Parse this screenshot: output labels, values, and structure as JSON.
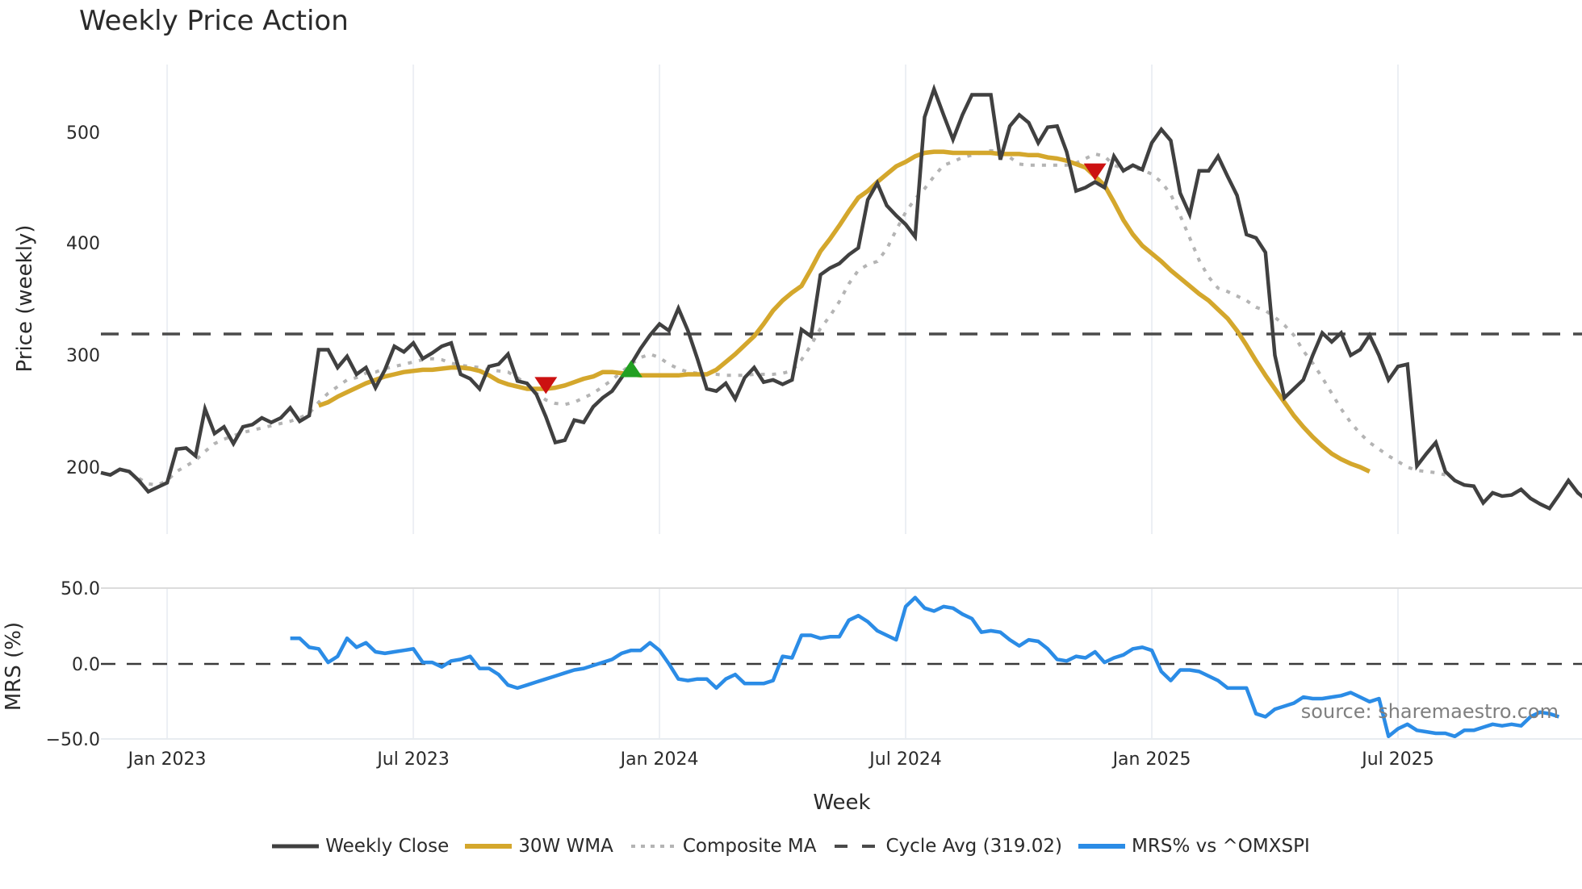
{
  "chart_data": {
    "type": "line",
    "title": "Weekly Price Action",
    "xlabel": "Week",
    "panels": [
      {
        "name": "price",
        "ylabel": "Price (weekly)",
        "yticks": [
          200,
          300,
          400,
          500
        ],
        "ylim": [
          145,
          560
        ]
      },
      {
        "name": "mrs",
        "ylabel": "MRS (%)",
        "yticks": [
          "50.0",
          "0.0",
          "−50.0"
        ],
        "ylim": [
          -50,
          50
        ]
      }
    ],
    "x_tick_labels": [
      "Jan 2023",
      "Jul 2023",
      "Jan 2024",
      "Jul 2024",
      "Jan 2025",
      "Jul 2025"
    ],
    "x_tick_week_index": [
      7,
      33,
      59,
      85,
      111,
      137
    ],
    "cycle_avg": 319.02,
    "series": [
      {
        "name": "Weekly Close",
        "color": "#404040",
        "style": "solid",
        "values": [
          195,
          193,
          198,
          196,
          188,
          178,
          182,
          186,
          216,
          217,
          210,
          252,
          230,
          236,
          221,
          236,
          238,
          244,
          240,
          244,
          253,
          241,
          246,
          305,
          305,
          289,
          299,
          283,
          289,
          271,
          287,
          308,
          303,
          311,
          297,
          302,
          308,
          311,
          283,
          279,
          270,
          290,
          292,
          301,
          277,
          275,
          265,
          245,
          222,
          224,
          242,
          240,
          254,
          262,
          268,
          280,
          292,
          306,
          318,
          328,
          322,
          342,
          322,
          297,
          270,
          268,
          275,
          261,
          280,
          289,
          276,
          278,
          274,
          278,
          323,
          317,
          372,
          378,
          382,
          390,
          396,
          439,
          454,
          434,
          425,
          417,
          406,
          513,
          538,
          515,
          493,
          515,
          533,
          533,
          533,
          475,
          505,
          515,
          508,
          490,
          504,
          505,
          482,
          447,
          450,
          455,
          450,
          478,
          465,
          470,
          466,
          490,
          502,
          492,
          445,
          426,
          465,
          465,
          478,
          460,
          443,
          408,
          405,
          392,
          300,
          262,
          270,
          278,
          300,
          320,
          312,
          320,
          300,
          305,
          318,
          300,
          278,
          290,
          292,
          201,
          212,
          222,
          196,
          188,
          184,
          183,
          168,
          177,
          174,
          175,
          180,
          172,
          167,
          163,
          175,
          188,
          177,
          170
        ]
      },
      {
        "name": "30W WMA",
        "color": "#d4a72c",
        "style": "solid",
        "start_index": 23,
        "values": [
          255,
          258,
          263,
          267,
          271,
          275,
          278,
          281,
          283,
          285,
          286,
          287,
          287,
          288,
          289,
          289,
          288,
          286,
          282,
          277,
          274,
          272,
          270,
          270,
          270,
          271,
          273,
          276,
          279,
          281,
          285,
          285,
          284,
          283,
          282,
          282,
          282,
          282,
          282,
          283,
          283,
          283,
          287,
          294,
          301,
          309,
          317,
          328,
          340,
          349,
          356,
          362,
          377,
          393,
          404,
          416,
          429,
          441,
          447,
          455,
          462,
          469,
          473,
          478,
          481,
          482,
          482,
          481,
          481,
          481,
          481,
          481,
          480,
          480,
          480,
          479,
          479,
          477,
          476,
          474,
          471,
          468,
          460,
          452,
          437,
          421,
          408,
          398,
          391,
          384,
          376,
          369,
          362,
          355,
          349,
          341,
          333,
          322,
          309,
          295,
          282,
          270,
          258,
          246,
          236,
          227,
          219,
          212,
          207,
          203,
          200,
          196
        ]
      },
      {
        "name": "Composite MA",
        "color": "#b4b4b4",
        "style": "dotted",
        "values": [
          null,
          null,
          null,
          195,
          190,
          185,
          184,
          188,
          196,
          201,
          206,
          214,
          221,
          225,
          228,
          231,
          233,
          235,
          237,
          239,
          241,
          244,
          248,
          258,
          266,
          272,
          278,
          280,
          284,
          285,
          288,
          290,
          292,
          294,
          296,
          297,
          296,
          293,
          291,
          290,
          289,
          287,
          286,
          285,
          280,
          274,
          266,
          260,
          257,
          256,
          258,
          262,
          266,
          272,
          278,
          285,
          292,
          298,
          301,
          298,
          292,
          288,
          285,
          284,
          283,
          283,
          282,
          282,
          282,
          283,
          283,
          283,
          284,
          286,
          296,
          309,
          324,
          335,
          348,
          364,
          376,
          381,
          384,
          395,
          412,
          428,
          440,
          449,
          460,
          470,
          473,
          477,
          479,
          481,
          483,
          482,
          477,
          471,
          470,
          470,
          470,
          470,
          470,
          472,
          476,
          480,
          478,
          470,
          467,
          467,
          466,
          462,
          455,
          444,
          425,
          405,
          385,
          370,
          360,
          357,
          353,
          349,
          343,
          340,
          334,
          327,
          318,
          304,
          293,
          280,
          266,
          252,
          240,
          230,
          222,
          216,
          210,
          205,
          200,
          197,
          196,
          195,
          193
        ]
      },
      {
        "name": "Cycle Avg (319.02)",
        "color": "#4a4a4a",
        "style": "dashed",
        "value": 319.02
      },
      {
        "name": "MRS% vs ^OMXSPI",
        "color": "#2b8ce6",
        "style": "solid",
        "panel": "mrs",
        "start_index": 20,
        "values": [
          17,
          17,
          11,
          10,
          1,
          5,
          17,
          11,
          14,
          8,
          7,
          8,
          9,
          10,
          1,
          1,
          -2,
          2,
          3,
          5,
          -3,
          -3,
          -7,
          -14,
          -16,
          -14,
          -12,
          -10,
          -8,
          -6,
          -4,
          -3,
          -1,
          1,
          3,
          7,
          9,
          9,
          14,
          9,
          0,
          -10,
          -11,
          -10,
          -10,
          -16,
          -10,
          -7,
          -13,
          -13,
          -13,
          -11,
          5,
          4,
          19,
          19,
          17,
          18,
          18,
          29,
          32,
          28,
          22,
          19,
          16,
          38,
          44,
          37,
          35,
          38,
          37,
          33,
          30,
          21,
          22,
          21,
          16,
          12,
          16,
          15,
          10,
          3,
          2,
          5,
          4,
          8,
          1,
          4,
          6,
          10,
          11,
          9,
          -5,
          -11,
          -4,
          -4,
          -5,
          -8,
          -11,
          -16,
          -16,
          -16,
          -33,
          -35,
          -30,
          -28,
          -26,
          -22,
          -23,
          -23,
          -22,
          -21,
          -19,
          -22,
          -25,
          -23,
          -48,
          -43,
          -40,
          -44,
          -45,
          -46,
          -46,
          -48,
          -44,
          -44,
          -42,
          -40,
          -41,
          -40,
          -41,
          -35,
          -32,
          -33,
          -35
        ]
      }
    ],
    "markers": [
      {
        "type": "sell",
        "shape": "triangle-down",
        "color": "#cc1111",
        "week_index": 47,
        "value": 275
      },
      {
        "type": "buy",
        "shape": "triangle-up",
        "color": "#22a022",
        "week_index": 56,
        "value": 286
      },
      {
        "type": "sell",
        "shape": "triangle-down",
        "color": "#cc1111",
        "week_index": 105,
        "value": 466
      }
    ],
    "legend": [
      {
        "label": "Weekly Close",
        "color": "#404040",
        "style": "solid"
      },
      {
        "label": "30W WMA",
        "color": "#d4a72c",
        "style": "solid"
      },
      {
        "label": "Composite MA",
        "color": "#b4b4b4",
        "style": "dotted"
      },
      {
        "label": "Cycle Avg (319.02)",
        "color": "#4a4a4a",
        "style": "dashed"
      },
      {
        "label": "MRS% vs ^OMXSPI",
        "color": "#2b8ce6",
        "style": "solid"
      }
    ],
    "legend_position": "bottom",
    "grid": true,
    "annotation": "source: sharemaestro.com"
  },
  "labels": {
    "title": "Weekly Price Action",
    "price_ylabel": "Price (weekly)",
    "mrs_ylabel": "MRS (%)",
    "xlabel": "Week",
    "watermark": "source: sharemaestro.com",
    "price_ticks": [
      "200",
      "300",
      "400",
      "500"
    ],
    "mrs_ticks": [
      "50.0",
      "0.0",
      "−50.0"
    ],
    "x_ticks": [
      "Jan 2023",
      "Jul 2023",
      "Jan 2024",
      "Jul 2024",
      "Jan 2025",
      "Jul 2025"
    ],
    "legend": [
      "Weekly Close",
      "30W WMA",
      "Composite MA",
      "Cycle Avg (319.02)",
      "MRS% vs ^OMXSPI"
    ]
  }
}
